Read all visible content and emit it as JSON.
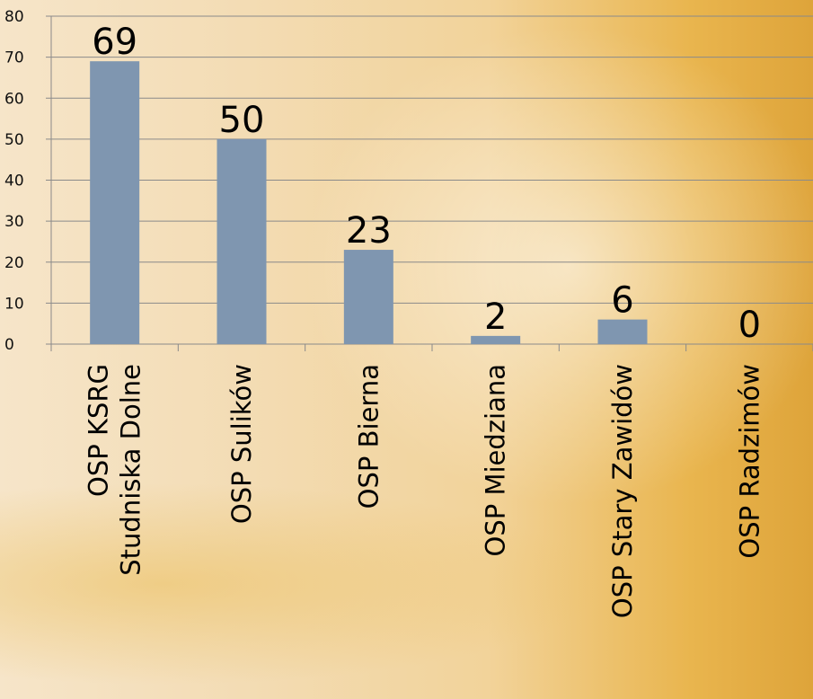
{
  "chart_data": {
    "type": "bar",
    "categories": [
      [
        "OSP KSRG",
        "Studniska Dolne"
      ],
      [
        "OSP Sulików"
      ],
      [
        "OSP Bierna"
      ],
      [
        "OSP Miedziana"
      ],
      [
        "OSP Stary Zawidów"
      ],
      [
        "OSP Radzimów"
      ]
    ],
    "values": [
      69,
      50,
      23,
      2,
      6,
      0
    ],
    "data_labels": [
      "69",
      "50",
      "23",
      "2",
      "6",
      "0"
    ],
    "y_ticks": [
      "0",
      "10",
      "20",
      "30",
      "40",
      "50",
      "60",
      "70",
      "80"
    ],
    "ylim": [
      0,
      80
    ],
    "grid": true,
    "bar_color": "#7f96b0",
    "grid_color": "#8a8a8a"
  }
}
